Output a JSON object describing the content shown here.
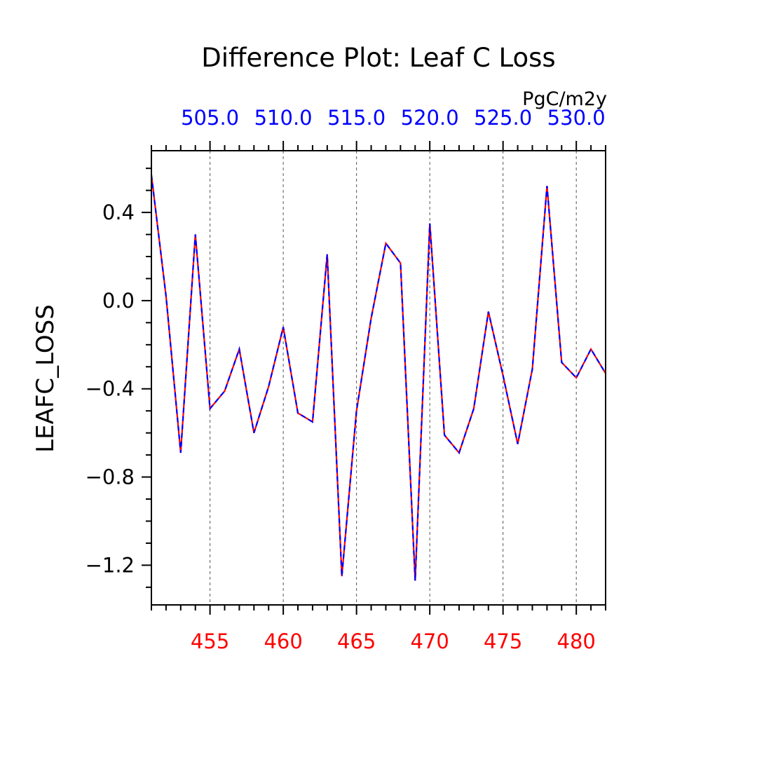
{
  "chart_data": {
    "type": "line",
    "title": "Difference Plot: Leaf C Loss",
    "units": "PgC/m2y",
    "ylabel": "LEAFC_LOSS",
    "xlim": [
      451,
      482
    ],
    "ylim": [
      -1.38,
      0.68
    ],
    "grid_x": true,
    "x": [
      451,
      452,
      453,
      454,
      455,
      456,
      457,
      458,
      459,
      460,
      461,
      462,
      463,
      464,
      465,
      466,
      467,
      468,
      469,
      470,
      471,
      472,
      473,
      474,
      475,
      476,
      477,
      478,
      479,
      480,
      481,
      482
    ],
    "x_ticks": [
      455,
      460,
      465,
      470,
      475,
      480
    ],
    "x_tick_labels": [
      "455",
      "460",
      "465",
      "470",
      "475",
      "480"
    ],
    "x2_ticks": [
      505,
      510,
      515,
      520,
      525,
      530
    ],
    "x2_tick_labels": [
      "505.0",
      "510.0",
      "515.0",
      "520.0",
      "525.0",
      "530.0"
    ],
    "x2_offset": 50,
    "y_ticks": [
      0.4,
      0.0,
      -0.4,
      -0.8,
      -1.2
    ],
    "y_tick_labels": [
      "0.4",
      "0.0",
      "−0.4",
      "−0.8",
      "−1.2"
    ],
    "series": [
      {
        "color": "#ff0000",
        "style": "solid",
        "values": [
          0.57,
          0.02,
          -0.69,
          0.3,
          -0.49,
          -0.41,
          -0.22,
          -0.6,
          -0.39,
          -0.12,
          -0.51,
          -0.55,
          0.21,
          -1.25,
          -0.5,
          -0.08,
          0.26,
          0.17,
          -1.27,
          0.35,
          -0.61,
          -0.69,
          -0.49,
          -0.05,
          -0.34,
          -0.65,
          -0.31,
          0.52,
          -0.28,
          -0.35,
          -0.22,
          -0.33
        ]
      },
      {
        "color": "#0000ff",
        "style": "dashed",
        "values": [
          0.57,
          0.02,
          -0.69,
          0.3,
          -0.49,
          -0.41,
          -0.22,
          -0.6,
          -0.39,
          -0.12,
          -0.51,
          -0.55,
          0.21,
          -1.25,
          -0.5,
          -0.08,
          0.26,
          0.17,
          -1.27,
          0.35,
          -0.61,
          -0.69,
          -0.49,
          -0.05,
          -0.34,
          -0.65,
          -0.31,
          0.52,
          -0.28,
          -0.35,
          -0.22,
          -0.33
        ]
      }
    ],
    "colors": {
      "axis": "#000000",
      "bottom_tick_labels": "#ff0000",
      "top_tick_labels": "#0000ff",
      "grid": "#555555"
    }
  }
}
